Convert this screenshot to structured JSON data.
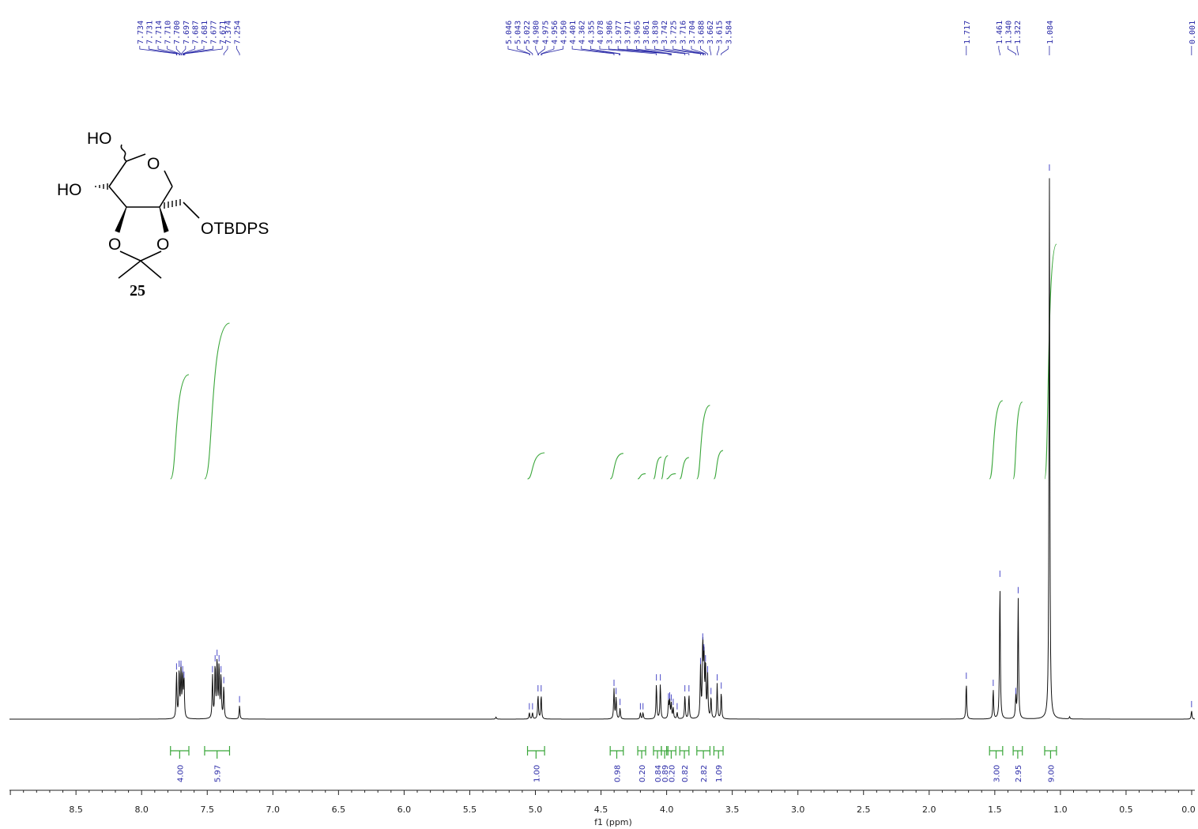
{
  "chart_data": {
    "type": "line",
    "title": "",
    "xlabel": "f1 (ppm)",
    "ylabel": "",
    "xlim": [
      9.0,
      0.0
    ],
    "x_reversed": true,
    "grid": false,
    "xticks": [
      "8.5",
      "8.0",
      "7.5",
      "7.0",
      "6.5",
      "6.0",
      "5.5",
      "5.0",
      "4.5",
      "4.0",
      "3.5",
      "3.0",
      "2.5",
      "2.0",
      "1.5",
      "1.0",
      "0.5",
      "0.0"
    ],
    "peak_labels": [
      {
        "group": "aromatic-a",
        "anchor": 7.7,
        "values": [
          "7.734",
          "7.731",
          "7.714",
          "7.710",
          "7.700",
          "7.697",
          "7.687",
          "7.681",
          "7.677",
          "7.671"
        ]
      },
      {
        "group": "aromatic-b",
        "anchor": 7.31,
        "values": [
          "7.374",
          "7.254"
        ]
      },
      {
        "group": "sugar",
        "anchor": 4.37,
        "values": [
          "5.046",
          "5.043",
          "5.022",
          "4.980",
          "4.975",
          "4.956",
          "4.950",
          "4.401",
          "4.362",
          "4.355",
          "4.078",
          "3.986",
          "3.977",
          "3.971",
          "3.965",
          "3.861",
          "3.830",
          "3.742",
          "3.725",
          "3.716",
          "3.704",
          "3.688",
          "3.662",
          "3.615",
          "3.584"
        ]
      },
      {
        "group": "aliphatic-a",
        "anchor": 1.717,
        "values": [
          "1.717"
        ]
      },
      {
        "group": "aliphatic-b",
        "anchor": 1.4,
        "values": [
          "1.461",
          "1.340",
          "1.322"
        ]
      },
      {
        "group": "aliphatic-c",
        "anchor": 1.084,
        "values": [
          "1.084"
        ]
      },
      {
        "group": "tms",
        "anchor": 0.001,
        "values": [
          "0.001"
        ]
      }
    ],
    "peaks": [
      {
        "ppm": 7.734,
        "h": 0.085
      },
      {
        "ppm": 7.714,
        "h": 0.09
      },
      {
        "ppm": 7.7,
        "h": 0.09
      },
      {
        "ppm": 7.687,
        "h": 0.08
      },
      {
        "ppm": 7.677,
        "h": 0.07
      },
      {
        "ppm": 7.46,
        "h": 0.08
      },
      {
        "ppm": 7.44,
        "h": 0.1
      },
      {
        "ppm": 7.425,
        "h": 0.11
      },
      {
        "ppm": 7.41,
        "h": 0.1
      },
      {
        "ppm": 7.395,
        "h": 0.08
      },
      {
        "ppm": 7.374,
        "h": 0.06
      },
      {
        "ppm": 7.254,
        "h": 0.025
      },
      {
        "ppm": 5.3,
        "h": 0.004
      },
      {
        "ppm": 5.046,
        "h": 0.012
      },
      {
        "ppm": 5.022,
        "h": 0.012
      },
      {
        "ppm": 4.98,
        "h": 0.045
      },
      {
        "ppm": 4.956,
        "h": 0.045
      },
      {
        "ppm": 4.401,
        "h": 0.055
      },
      {
        "ppm": 4.385,
        "h": 0.04
      },
      {
        "ppm": 4.355,
        "h": 0.02
      },
      {
        "ppm": 4.2,
        "h": 0.012
      },
      {
        "ppm": 4.18,
        "h": 0.012
      },
      {
        "ppm": 4.078,
        "h": 0.065
      },
      {
        "ppm": 4.048,
        "h": 0.065
      },
      {
        "ppm": 3.986,
        "h": 0.03
      },
      {
        "ppm": 3.977,
        "h": 0.032
      },
      {
        "ppm": 3.965,
        "h": 0.028
      },
      {
        "ppm": 3.95,
        "h": 0.02
      },
      {
        "ppm": 3.92,
        "h": 0.012
      },
      {
        "ppm": 3.861,
        "h": 0.045
      },
      {
        "ppm": 3.83,
        "h": 0.045
      },
      {
        "ppm": 3.742,
        "h": 0.095
      },
      {
        "ppm": 3.725,
        "h": 0.14
      },
      {
        "ppm": 3.716,
        "h": 0.12
      },
      {
        "ppm": 3.704,
        "h": 0.1
      },
      {
        "ppm": 3.688,
        "h": 0.08
      },
      {
        "ppm": 3.662,
        "h": 0.04
      },
      {
        "ppm": 3.615,
        "h": 0.065
      },
      {
        "ppm": 3.584,
        "h": 0.05
      },
      {
        "ppm": 1.717,
        "h": 0.068
      },
      {
        "ppm": 1.512,
        "h": 0.055
      },
      {
        "ppm": 1.461,
        "h": 0.255
      },
      {
        "ppm": 1.34,
        "h": 0.04
      },
      {
        "ppm": 1.322,
        "h": 0.225
      },
      {
        "ppm": 1.084,
        "h": 1.0
      },
      {
        "ppm": 0.93,
        "h": 0.004
      },
      {
        "ppm": 0.001,
        "h": 0.016
      }
    ],
    "integrals": [
      {
        "from": 7.78,
        "to": 7.64,
        "value": "4.00"
      },
      {
        "from": 7.52,
        "to": 7.33,
        "value": "5.97"
      },
      {
        "from": 5.06,
        "to": 4.93,
        "value": "1.00"
      },
      {
        "from": 4.43,
        "to": 4.33,
        "value": "0.98"
      },
      {
        "from": 4.22,
        "to": 4.16,
        "value": "0.20"
      },
      {
        "from": 4.1,
        "to": 4.04,
        "value": "0.84"
      },
      {
        "from": 4.04,
        "to": 3.99,
        "value": "0.89"
      },
      {
        "from": 4.0,
        "to": 3.93,
        "value": "0.20"
      },
      {
        "from": 3.9,
        "to": 3.83,
        "value": "0.82"
      },
      {
        "from": 3.77,
        "to": 3.67,
        "value": "2.82"
      },
      {
        "from": 3.64,
        "to": 3.57,
        "value": "1.09"
      },
      {
        "from": 1.54,
        "to": 1.44,
        "value": "3.00"
      },
      {
        "from": 1.36,
        "to": 1.29,
        "value": "2.95"
      },
      {
        "from": 1.12,
        "to": 1.03,
        "value": "9.00"
      }
    ]
  },
  "structure": {
    "compound_number": "25",
    "atoms": [
      "HO",
      "O",
      "HO",
      "OTBDPS",
      "O",
      "O"
    ]
  }
}
